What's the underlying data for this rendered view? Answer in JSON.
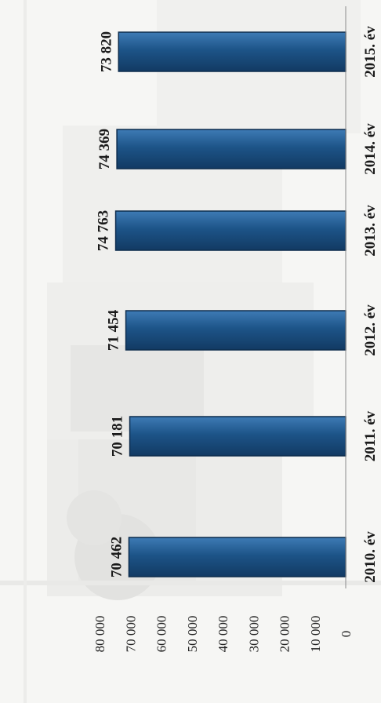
{
  "chart_data": {
    "type": "bar",
    "orientation": "vertical-bars-rotated-page",
    "categories": [
      "2010. év",
      "2011. év",
      "2012. év",
      "2013. év",
      "2014. év",
      "2015. év"
    ],
    "values": [
      70462,
      70181,
      71454,
      74763,
      74369,
      73820
    ],
    "value_labels": [
      "70 462",
      "70 181",
      "71 454",
      "74 763",
      "74 369",
      "73 820"
    ],
    "ylim": [
      0,
      80000
    ],
    "yticks": [
      0,
      10000,
      20000,
      30000,
      40000,
      50000,
      60000,
      70000,
      80000
    ],
    "ytick_labels": [
      "0",
      "10 000",
      "20 000",
      "30 000",
      "40 000",
      "50 000",
      "60 000",
      "70 000",
      "80 000"
    ],
    "title": "",
    "xlabel": "",
    "ylabel": "",
    "grid": false,
    "legend": "none",
    "colors": {
      "bar": "#1d5488",
      "bar_dark": "#123a63",
      "bar_light": "#3e7bb5"
    }
  }
}
